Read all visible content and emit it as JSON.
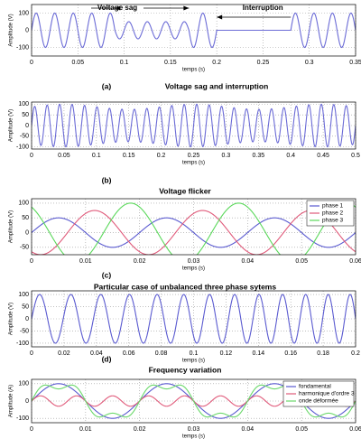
{
  "chart_data": [
    {
      "type": "line",
      "label": "(a)",
      "title": "Voltage sag and interruption",
      "xlabel": "temps (s)",
      "ylabel": "Amplitude (V)",
      "xlim": [
        0,
        0.35
      ],
      "ylim": [
        -150,
        150
      ],
      "xticks": [
        0,
        0.05,
        0.1,
        0.15,
        0.2,
        0.25,
        0.3,
        0.35
      ],
      "yticks": [
        -100,
        0,
        100
      ],
      "grid": true,
      "annotations": [
        "Voltage sag",
        "Interruption"
      ],
      "series": [
        {
          "color": "#6b6bd6",
          "segments": [
            {
              "t0": 0,
              "t1": 0.09,
              "amplitude": 100,
              "frequency": 50,
              "phase": 0
            },
            {
              "t0": 0.09,
              "t1": 0.17,
              "amplitude": 50,
              "frequency": 50,
              "phase": 0
            },
            {
              "t0": 0.17,
              "t1": 0.2,
              "amplitude": 100,
              "frequency": 50,
              "phase": 0
            },
            {
              "t0": 0.2,
              "t1": 0.28,
              "amplitude": 0,
              "frequency": 50,
              "phase": 0
            },
            {
              "t0": 0.28,
              "t1": 0.35,
              "amplitude": 100,
              "frequency": 50,
              "phase": 0
            }
          ]
        }
      ]
    },
    {
      "type": "line",
      "label": "(b)",
      "title": "Voltage flicker",
      "xlabel": "temps (s)",
      "ylabel": "Amplitude (V)",
      "xlim": [
        0,
        0.5
      ],
      "ylim": [
        -110,
        110
      ],
      "xticks": [
        0,
        0.05,
        0.1,
        0.15,
        0.2,
        0.25,
        0.3,
        0.35,
        0.4,
        0.45,
        0.5
      ],
      "yticks": [
        -100,
        -50,
        0,
        50,
        100
      ],
      "grid": true,
      "series": [
        {
          "color": "#6b6bd6",
          "segments": [
            {
              "t0": 0,
              "t1": 0.5,
              "amplitude": 88,
              "frequency": 52,
              "phase": 0,
              "modulation_amplitude": 12,
              "modulation_frequency": 5
            }
          ]
        }
      ]
    },
    {
      "type": "line",
      "label": "(c)",
      "title": "Particular case of unbalanced  three phase sytems",
      "xlabel": "temps (s)",
      "ylabel": "Amplitude (V)",
      "xlim": [
        0,
        0.06
      ],
      "ylim": [
        -75,
        115
      ],
      "xticks": [
        0,
        0.01,
        0.02,
        0.03,
        0.04,
        0.05,
        0.06
      ],
      "yticks": [
        -50,
        0,
        50,
        100
      ],
      "grid": true,
      "legend": "upper right",
      "series": [
        {
          "name": "phase 1",
          "color": "#5a5ad0",
          "segments": [
            {
              "t0": 0,
              "t1": 0.06,
              "amplitude": 50,
              "frequency": 50,
              "phase": 0
            }
          ]
        },
        {
          "name": "phase 2",
          "color": "#e05a7a",
          "segments": [
            {
              "t0": 0,
              "t1": 0.06,
              "amplitude": 75,
              "frequency": 50,
              "phase": -120
            }
          ]
        },
        {
          "name": "phase 3",
          "color": "#5ad85a",
          "segments": [
            {
              "t0": 0,
              "t1": 0.06,
              "amplitude": 100,
              "frequency": 50,
              "phase": 120
            }
          ]
        }
      ]
    },
    {
      "type": "line",
      "label": "(d)",
      "title": "Frequency variation",
      "xlabel": "temps (s)",
      "ylabel": "Amplitude (V)",
      "xlim": [
        0,
        0.2
      ],
      "ylim": [
        -115,
        115
      ],
      "xticks": [
        0,
        0.02,
        0.04,
        0.06,
        0.08,
        0.1,
        0.12,
        0.14,
        0.16,
        0.18,
        0.2
      ],
      "yticks": [
        -100,
        -50,
        0,
        50,
        100
      ],
      "grid": true,
      "series": [
        {
          "color": "#5a5ad0",
          "segments": [
            {
              "t0": 0,
              "t1": 0.2,
              "amplitude": 100,
              "frequency": 50,
              "frequency_end": 75,
              "phase": 0
            }
          ]
        }
      ]
    },
    {
      "type": "line",
      "xlabel": "temps (s)",
      "ylabel": "Amplitude (A)",
      "xlim": [
        0,
        0.06
      ],
      "ylim": [
        -125,
        125
      ],
      "xticks": [
        0,
        0.01,
        0.02,
        0.03,
        0.04,
        0.05,
        0.06
      ],
      "yticks": [
        -100,
        0,
        100
      ],
      "grid": true,
      "legend": "upper right",
      "series": [
        {
          "name": "fondamental",
          "color": "#5a5ad0",
          "segments": [
            {
              "t0": 0,
              "t1": 0.06,
              "amplitude": 100,
              "frequency": 50,
              "phase": 0
            }
          ]
        },
        {
          "name": "harmonique d'ordre 3",
          "color": "#e05a7a",
          "segments": [
            {
              "t0": 0,
              "t1": 0.06,
              "amplitude": 30,
              "frequency": 150,
              "phase": 0
            }
          ]
        },
        {
          "name": "onde déformée",
          "color": "#6ad86a",
          "segments": [
            {
              "t0": 0,
              "t1": 0.06,
              "amplitude": 100,
              "frequency": 50,
              "phase": 0
            },
            {
              "t0": 0,
              "t1": 0.06,
              "amplitude": 30,
              "frequency": 150,
              "phase": 0
            }
          ]
        }
      ]
    }
  ]
}
